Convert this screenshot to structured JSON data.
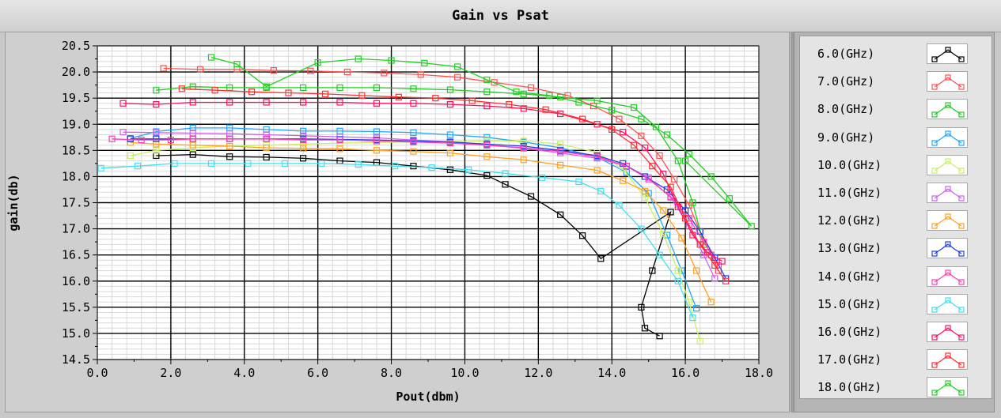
{
  "window": {
    "title": "Gain vs Psat"
  },
  "colors": {
    "plot_bg": "#ffffff",
    "grid_major": "#000000",
    "grid_minor": "#d8d8d8"
  },
  "chart_data": {
    "type": "line",
    "title": "Gain vs Psat",
    "xlabel": "Pout(dbm)",
    "ylabel": "gain(db)",
    "xlim": [
      0,
      18
    ],
    "ylim": [
      14.5,
      20.5
    ],
    "xticks": [
      "0.0",
      "2.0",
      "4.0",
      "6.0",
      "8.0",
      "10.0",
      "12.0",
      "14.0",
      "16.0",
      "18.0"
    ],
    "yticks": [
      "14.5",
      "15.0",
      "15.5",
      "16.0",
      "16.5",
      "17.0",
      "17.5",
      "18.0",
      "18.5",
      "19.0",
      "19.5",
      "20.0",
      "20.5"
    ],
    "grid": true,
    "legend_position": "right",
    "marker": "square",
    "series": [
      {
        "name": "6.0(GHz)",
        "color": "#000000",
        "x": [
          1.6,
          2.6,
          3.6,
          4.6,
          5.6,
          6.6,
          7.6,
          8.6,
          9.6,
          10.6,
          11.1,
          11.8,
          12.6,
          13.2,
          13.7,
          15.6,
          15.1,
          14.8,
          14.9,
          15.3
        ],
        "y": [
          18.4,
          18.42,
          18.38,
          18.37,
          18.35,
          18.3,
          18.27,
          18.2,
          18.13,
          18.02,
          17.85,
          17.62,
          17.27,
          16.87,
          16.43,
          17.32,
          16.2,
          15.5,
          15.1,
          14.95
        ]
      },
      {
        "name": "7.0(GHz)",
        "color": "#ff5050",
        "x": [
          1.8,
          2.8,
          3.8,
          4.8,
          5.8,
          6.8,
          7.8,
          8.8,
          9.8,
          10.8,
          11.8,
          12.8,
          13.5,
          14.2,
          14.8,
          15.3,
          15.7,
          16.1,
          16.4,
          16.7,
          16.9
        ],
        "y": [
          20.07,
          20.05,
          20.05,
          20.03,
          20.02,
          20.0,
          19.98,
          19.95,
          19.9,
          19.8,
          19.7,
          19.55,
          19.35,
          19.1,
          18.78,
          18.4,
          17.95,
          17.45,
          16.95,
          16.5,
          16.2
        ]
      },
      {
        "name": "8.0(GHz)",
        "color": "#22cc22",
        "x": [
          1.6,
          2.6,
          3.6,
          4.6,
          5.6,
          6.6,
          7.6,
          8.6,
          9.6,
          10.6,
          11.6,
          12.6,
          13.6,
          14.6,
          15.2,
          15.8,
          16.2,
          16.5
        ],
        "y": [
          19.65,
          19.72,
          19.7,
          19.7,
          19.7,
          19.7,
          19.7,
          19.68,
          19.66,
          19.62,
          19.58,
          19.52,
          19.45,
          19.32,
          18.95,
          18.3,
          17.5,
          16.7
        ]
      },
      {
        "name": "9.0(GHz)",
        "color": "#20a8ff",
        "x": [
          0.9,
          1.6,
          2.6,
          3.6,
          4.6,
          5.6,
          6.6,
          7.6,
          8.6,
          9.6,
          10.6,
          11.6,
          12.6,
          13.6,
          14.4,
          15.0,
          15.5,
          15.9,
          16.3
        ],
        "y": [
          18.73,
          18.86,
          18.93,
          18.93,
          18.9,
          18.87,
          18.87,
          18.86,
          18.84,
          18.8,
          18.75,
          18.66,
          18.55,
          18.37,
          18.08,
          17.68,
          16.88,
          16.2,
          15.48
        ]
      },
      {
        "name": "10.0(GHz)",
        "color": "#c8f060",
        "x": [
          0.9,
          1.6,
          2.6,
          3.6,
          4.6,
          5.6,
          6.6,
          7.6,
          8.6,
          9.6,
          10.6,
          11.6,
          12.6,
          13.6,
          14.3,
          14.9,
          15.4,
          15.8,
          16.1,
          16.4
        ],
        "y": [
          18.4,
          18.5,
          18.55,
          18.58,
          18.6,
          18.62,
          18.64,
          18.65,
          18.66,
          18.67,
          18.68,
          18.68,
          18.62,
          18.46,
          18.15,
          17.6,
          16.9,
          16.2,
          15.6,
          14.85
        ]
      },
      {
        "name": "11.0(GHz)",
        "color": "#d060f0",
        "x": [
          0.7,
          1.6,
          2.6,
          3.6,
          4.6,
          5.6,
          6.6,
          7.6,
          8.6,
          9.6,
          10.6,
          11.6,
          12.6,
          13.6,
          14.4,
          15.0,
          15.6,
          16.1,
          16.5,
          16.8
        ],
        "y": [
          18.85,
          18.84,
          18.83,
          18.82,
          18.8,
          18.78,
          18.76,
          18.74,
          18.7,
          18.66,
          18.6,
          18.54,
          18.45,
          18.35,
          18.2,
          17.98,
          17.6,
          17.05,
          16.5,
          16.05
        ]
      },
      {
        "name": "12.0(GHz)",
        "color": "#ffa020",
        "x": [
          0.9,
          1.6,
          2.6,
          3.6,
          4.6,
          5.6,
          6.6,
          7.6,
          8.6,
          9.6,
          10.6,
          11.6,
          12.6,
          13.6,
          14.3,
          14.9,
          15.4,
          15.9,
          16.3,
          16.7
        ],
        "y": [
          18.65,
          18.62,
          18.6,
          18.58,
          18.55,
          18.54,
          18.53,
          18.5,
          18.48,
          18.45,
          18.38,
          18.32,
          18.22,
          18.12,
          17.92,
          17.72,
          17.35,
          16.82,
          16.2,
          15.6
        ]
      },
      {
        "name": "13.0(GHz)",
        "color": "#2040e8",
        "x": [
          0.9,
          1.6,
          2.6,
          3.6,
          4.6,
          5.6,
          6.6,
          7.6,
          8.6,
          9.6,
          10.6,
          11.6,
          12.6,
          13.6,
          14.3,
          14.9,
          15.5,
          16.0,
          16.4,
          16.8,
          17.1
        ],
        "y": [
          18.72,
          18.72,
          18.72,
          18.72,
          18.72,
          18.72,
          18.71,
          18.7,
          18.68,
          18.66,
          18.62,
          18.58,
          18.5,
          18.4,
          18.25,
          18.0,
          17.75,
          17.35,
          16.95,
          16.45,
          16.05
        ]
      },
      {
        "name": "14.0(GHz)",
        "color": "#ff40b0",
        "x": [
          0.4,
          1.2,
          2.0,
          2.6,
          3.6,
          4.6,
          5.6,
          6.6,
          7.6,
          8.6,
          9.6,
          10.6,
          11.6,
          12.6,
          13.6,
          14.4,
          15.0,
          15.6,
          16.1,
          16.5,
          16.9
        ],
        "y": [
          18.72,
          18.7,
          18.7,
          18.72,
          18.72,
          18.72,
          18.7,
          18.7,
          18.68,
          18.66,
          18.64,
          18.6,
          18.55,
          18.48,
          18.38,
          18.2,
          17.95,
          17.62,
          17.2,
          16.75,
          16.3
        ]
      },
      {
        "name": "15.0(GHz)",
        "color": "#40e0f0",
        "x": [
          0.1,
          1.1,
          2.1,
          3.1,
          4.1,
          5.1,
          6.1,
          7.1,
          8.1,
          9.1,
          10.1,
          11.1,
          12.1,
          13.1,
          13.7,
          14.2,
          14.8,
          15.3,
          15.8,
          16.2
        ],
        "y": [
          18.16,
          18.2,
          18.25,
          18.25,
          18.25,
          18.25,
          18.25,
          18.23,
          18.2,
          18.17,
          18.13,
          18.06,
          17.98,
          17.9,
          17.72,
          17.45,
          17.0,
          16.5,
          16.0,
          15.3
        ]
      },
      {
        "name": "16.0(GHz)",
        "color": "#ff1060",
        "x": [
          0.7,
          1.6,
          2.6,
          3.6,
          4.6,
          5.6,
          6.6,
          7.6,
          8.6,
          9.6,
          10.6,
          11.6,
          12.6,
          13.6,
          14.3,
          14.9,
          15.4,
          15.8,
          16.2,
          16.6,
          17.0
        ],
        "y": [
          19.4,
          19.38,
          19.42,
          19.42,
          19.42,
          19.42,
          19.42,
          19.4,
          19.4,
          19.38,
          19.35,
          19.3,
          19.2,
          19.0,
          18.85,
          18.55,
          18.05,
          17.42,
          16.88,
          16.55,
          16.38
        ]
      },
      {
        "name": "17.0(GHz)",
        "color": "#ff3030",
        "x": [
          2.3,
          3.2,
          4.2,
          5.2,
          6.2,
          7.2,
          8.2,
          9.2,
          10.2,
          11.2,
          12.2,
          13.2,
          14.0,
          14.6,
          15.1,
          15.6,
          16.0,
          16.4,
          16.8,
          17.1
        ],
        "y": [
          19.68,
          19.65,
          19.62,
          19.6,
          19.58,
          19.55,
          19.52,
          19.5,
          19.45,
          19.38,
          19.28,
          19.1,
          18.9,
          18.6,
          18.2,
          17.8,
          17.2,
          16.7,
          16.3,
          16.0
        ]
      },
      {
        "name": "18.0(GHz)",
        "color": "#20d020",
        "x": [
          3.1,
          3.8,
          4.6,
          6.0,
          7.1,
          8.0,
          8.9,
          9.8,
          10.6,
          11.4,
          12.3,
          13.1,
          14.0,
          14.8,
          15.5,
          16.1,
          16.7,
          17.2,
          17.8,
          16.0
        ],
        "y": [
          20.28,
          20.15,
          19.72,
          20.18,
          20.25,
          20.22,
          20.17,
          20.1,
          19.85,
          19.62,
          19.55,
          19.42,
          19.27,
          19.1,
          18.8,
          18.43,
          18.0,
          17.58,
          17.05,
          18.3
        ]
      }
    ]
  }
}
